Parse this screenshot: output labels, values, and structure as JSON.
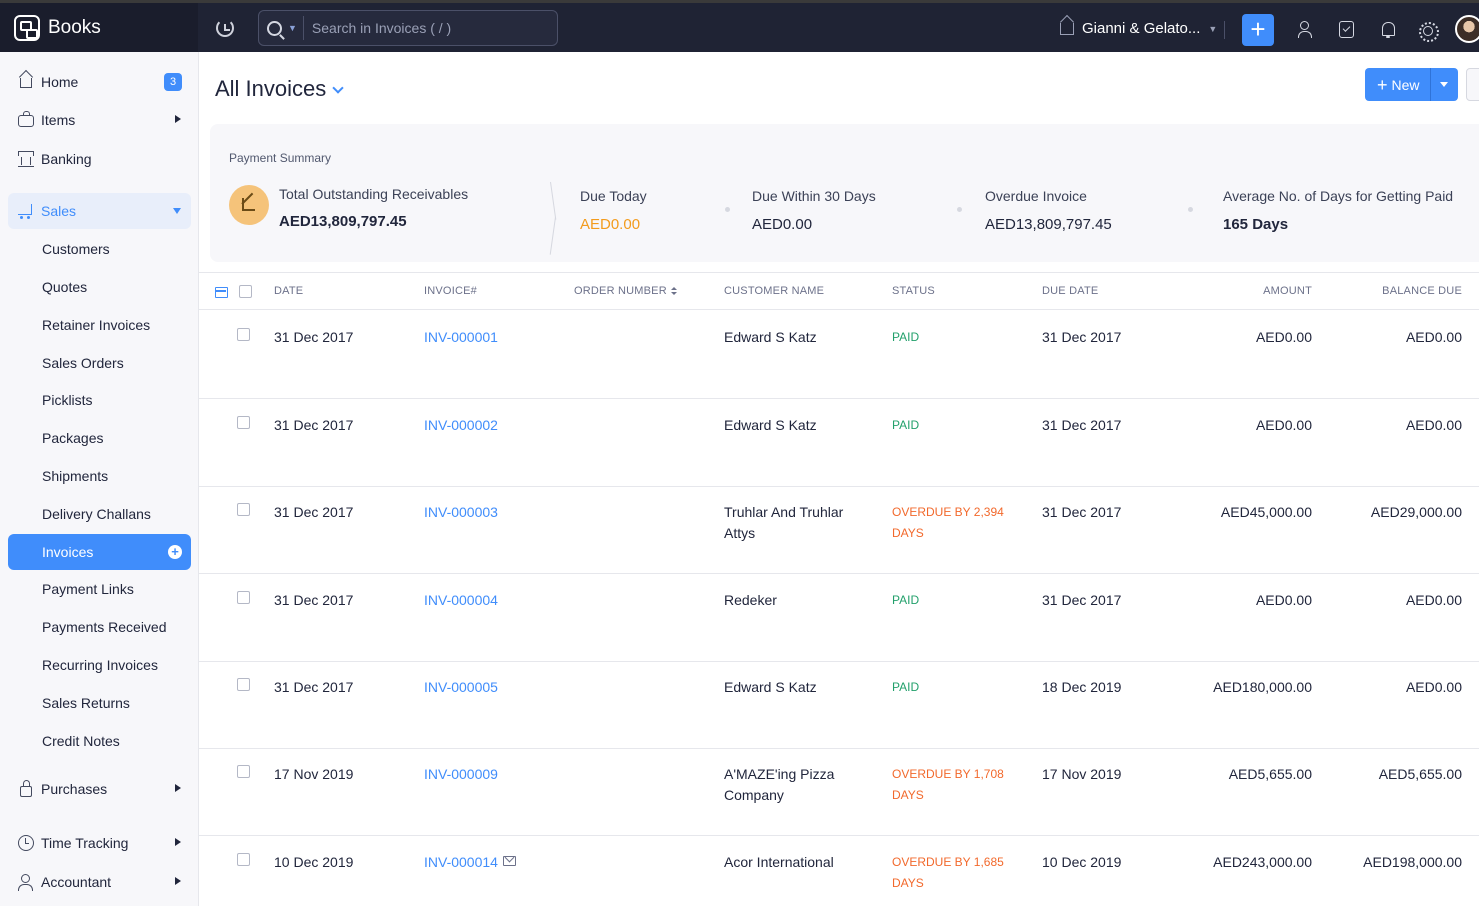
{
  "app": {
    "name": "Books"
  },
  "search": {
    "placeholder": "Search in Invoices ( / )"
  },
  "org": {
    "name": "Gianni & Gelato..."
  },
  "colors": {
    "accent": "#408dfb",
    "paid": "#22a06b",
    "overdue": "#f2692c",
    "due_today": "#f39b1c"
  },
  "sidebar": {
    "home": {
      "label": "Home",
      "badge": "3"
    },
    "items": {
      "label": "Items"
    },
    "banking": {
      "label": "Banking"
    },
    "sales": {
      "label": "Sales"
    },
    "sub": [
      "Customers",
      "Quotes",
      "Retainer Invoices",
      "Sales Orders",
      "Picklists",
      "Packages",
      "Shipments",
      "Delivery Challans",
      "Invoices",
      "Payment Links",
      "Payments Received",
      "Recurring Invoices",
      "Sales Returns",
      "Credit Notes"
    ],
    "purchases": {
      "label": "Purchases"
    },
    "time_tracking": {
      "label": "Time Tracking"
    },
    "accountant": {
      "label": "Accountant"
    }
  },
  "header": {
    "title": "All Invoices",
    "new_label": "New"
  },
  "summary": {
    "title": "Payment Summary",
    "receivables_label": "Total Outstanding Receivables",
    "receivables_value": "AED13,809,797.45",
    "due_today_label": "Due Today",
    "due_today_value": "AED0.00",
    "due_30_label": "Due Within 30 Days",
    "due_30_value": "AED0.00",
    "overdue_label": "Overdue Invoice",
    "overdue_value": "AED13,809,797.45",
    "avg_days_label": "Average No. of Days for Getting Paid",
    "avg_days_value": "165 Days"
  },
  "table": {
    "columns": {
      "date": "DATE",
      "invoice": "INVOICE#",
      "order": "ORDER NUMBER",
      "customer": "CUSTOMER NAME",
      "status": "STATUS",
      "due": "DUE DATE",
      "amount": "AMOUNT",
      "balance": "BALANCE DUE"
    },
    "rows": [
      {
        "date": "31 Dec 2017",
        "invoice": "INV-000001",
        "order": "",
        "customer": "Edward S Katz",
        "status": "PAID",
        "status_type": "paid",
        "due": "31 Dec 2017",
        "amount": "AED0.00",
        "balance": "AED0.00"
      },
      {
        "date": "31 Dec 2017",
        "invoice": "INV-000002",
        "order": "",
        "customer": "Edward S Katz",
        "status": "PAID",
        "status_type": "paid",
        "due": "31 Dec 2017",
        "amount": "AED0.00",
        "balance": "AED0.00"
      },
      {
        "date": "31 Dec 2017",
        "invoice": "INV-000003",
        "order": "",
        "customer": "Truhlar And Truhlar Attys",
        "status": "OVERDUE BY 2,394 DAYS",
        "status_type": "overdue",
        "due": "31 Dec 2017",
        "amount": "AED45,000.00",
        "balance": "AED29,000.00"
      },
      {
        "date": "31 Dec 2017",
        "invoice": "INV-000004",
        "order": "",
        "customer": "Redeker",
        "status": "PAID",
        "status_type": "paid",
        "due": "31 Dec 2017",
        "amount": "AED0.00",
        "balance": "AED0.00"
      },
      {
        "date": "31 Dec 2017",
        "invoice": "INV-000005",
        "order": "",
        "customer": "Edward S Katz",
        "status": "PAID",
        "status_type": "paid",
        "due": "18 Dec 2019",
        "amount": "AED180,000.00",
        "balance": "AED0.00"
      },
      {
        "date": "17 Nov 2019",
        "invoice": "INV-000009",
        "order": "",
        "customer": "A'MAZE'ing Pizza Company",
        "status": "OVERDUE BY 1,708 DAYS",
        "status_type": "overdue",
        "due": "17 Nov 2019",
        "amount": "AED5,655.00",
        "balance": "AED5,655.00"
      },
      {
        "date": "10 Dec 2019",
        "invoice": "INV-000014",
        "order": "",
        "customer": "Acor International",
        "status": "OVERDUE BY 1,685 DAYS",
        "status_type": "overdue",
        "due": "10 Dec 2019",
        "amount": "AED243,000.00",
        "balance": "AED198,000.00",
        "emailed": true
      }
    ]
  }
}
